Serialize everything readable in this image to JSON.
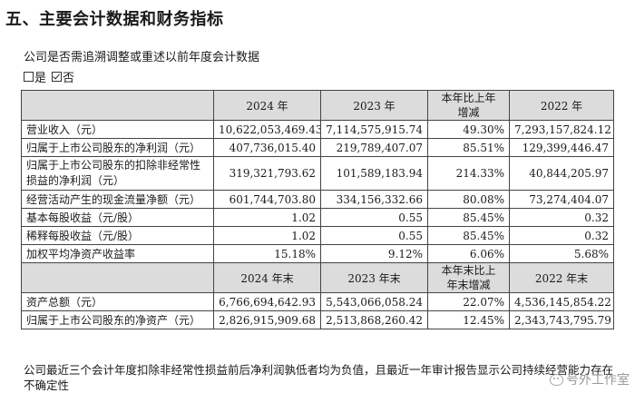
{
  "section_title": "五、主要会计数据和财务指标",
  "question": "公司是否需追溯调整或重述以前年度会计数据",
  "options": [
    {
      "label": "是",
      "checked": false
    },
    {
      "label": "否",
      "checked": true
    }
  ],
  "table": {
    "header1": [
      "",
      "2024 年",
      "2023 年",
      "本年比上年增减",
      "2022 年"
    ],
    "header1_change_lines": [
      "本年比上年",
      "增减"
    ],
    "rows1": [
      [
        "营业收入（元）",
        "10,622,053,469.43",
        "7,114,575,915.74",
        "49.30%",
        "7,293,157,824.12"
      ],
      [
        "归属于上市公司股东的净利润（元）",
        "407,736,015.40",
        "219,789,407.07",
        "85.51%",
        "129,399,446.47"
      ],
      [
        "归属于上市公司股东的扣除非经常性损益的净利润（元）",
        "319,321,793.62",
        "101,589,183.94",
        "214.33%",
        "40,844,205.97"
      ],
      [
        "经营活动产生的现金流量净额（元）",
        "601,744,703.80",
        "334,156,332.66",
        "80.08%",
        "73,274,404.07"
      ],
      [
        "基本每股收益（元/股）",
        "1.02",
        "0.55",
        "85.45%",
        "0.32"
      ],
      [
        "稀释每股收益（元/股）",
        "1.02",
        "0.55",
        "85.45%",
        "0.32"
      ],
      [
        "加权平均净资产收益率",
        "15.18%",
        "9.12%",
        "6.06%",
        "5.68%"
      ]
    ],
    "header2": [
      "",
      "2024 年末",
      "2023 年末",
      "本年末比上年末增减",
      "2022 年末"
    ],
    "header2_change_lines": [
      "本年末比上",
      "年末增减"
    ],
    "rows2": [
      [
        "资产总额（元）",
        "6,766,694,642.93",
        "5,543,066,058.24",
        "22.07%",
        "4,536,145,854.22"
      ],
      [
        "归属于上市公司股东的净资产（元）",
        "2,826,915,909.68",
        "2,513,868,260.42",
        "12.45%",
        "2,343,743,795.79"
      ]
    ]
  },
  "footnote": "公司最近三个会计年度扣除非经常性损益前后净利润孰低者均为负值，且最近一年审计报告显示公司持续经营能力存在不确定性",
  "watermark": "号外工作室"
}
